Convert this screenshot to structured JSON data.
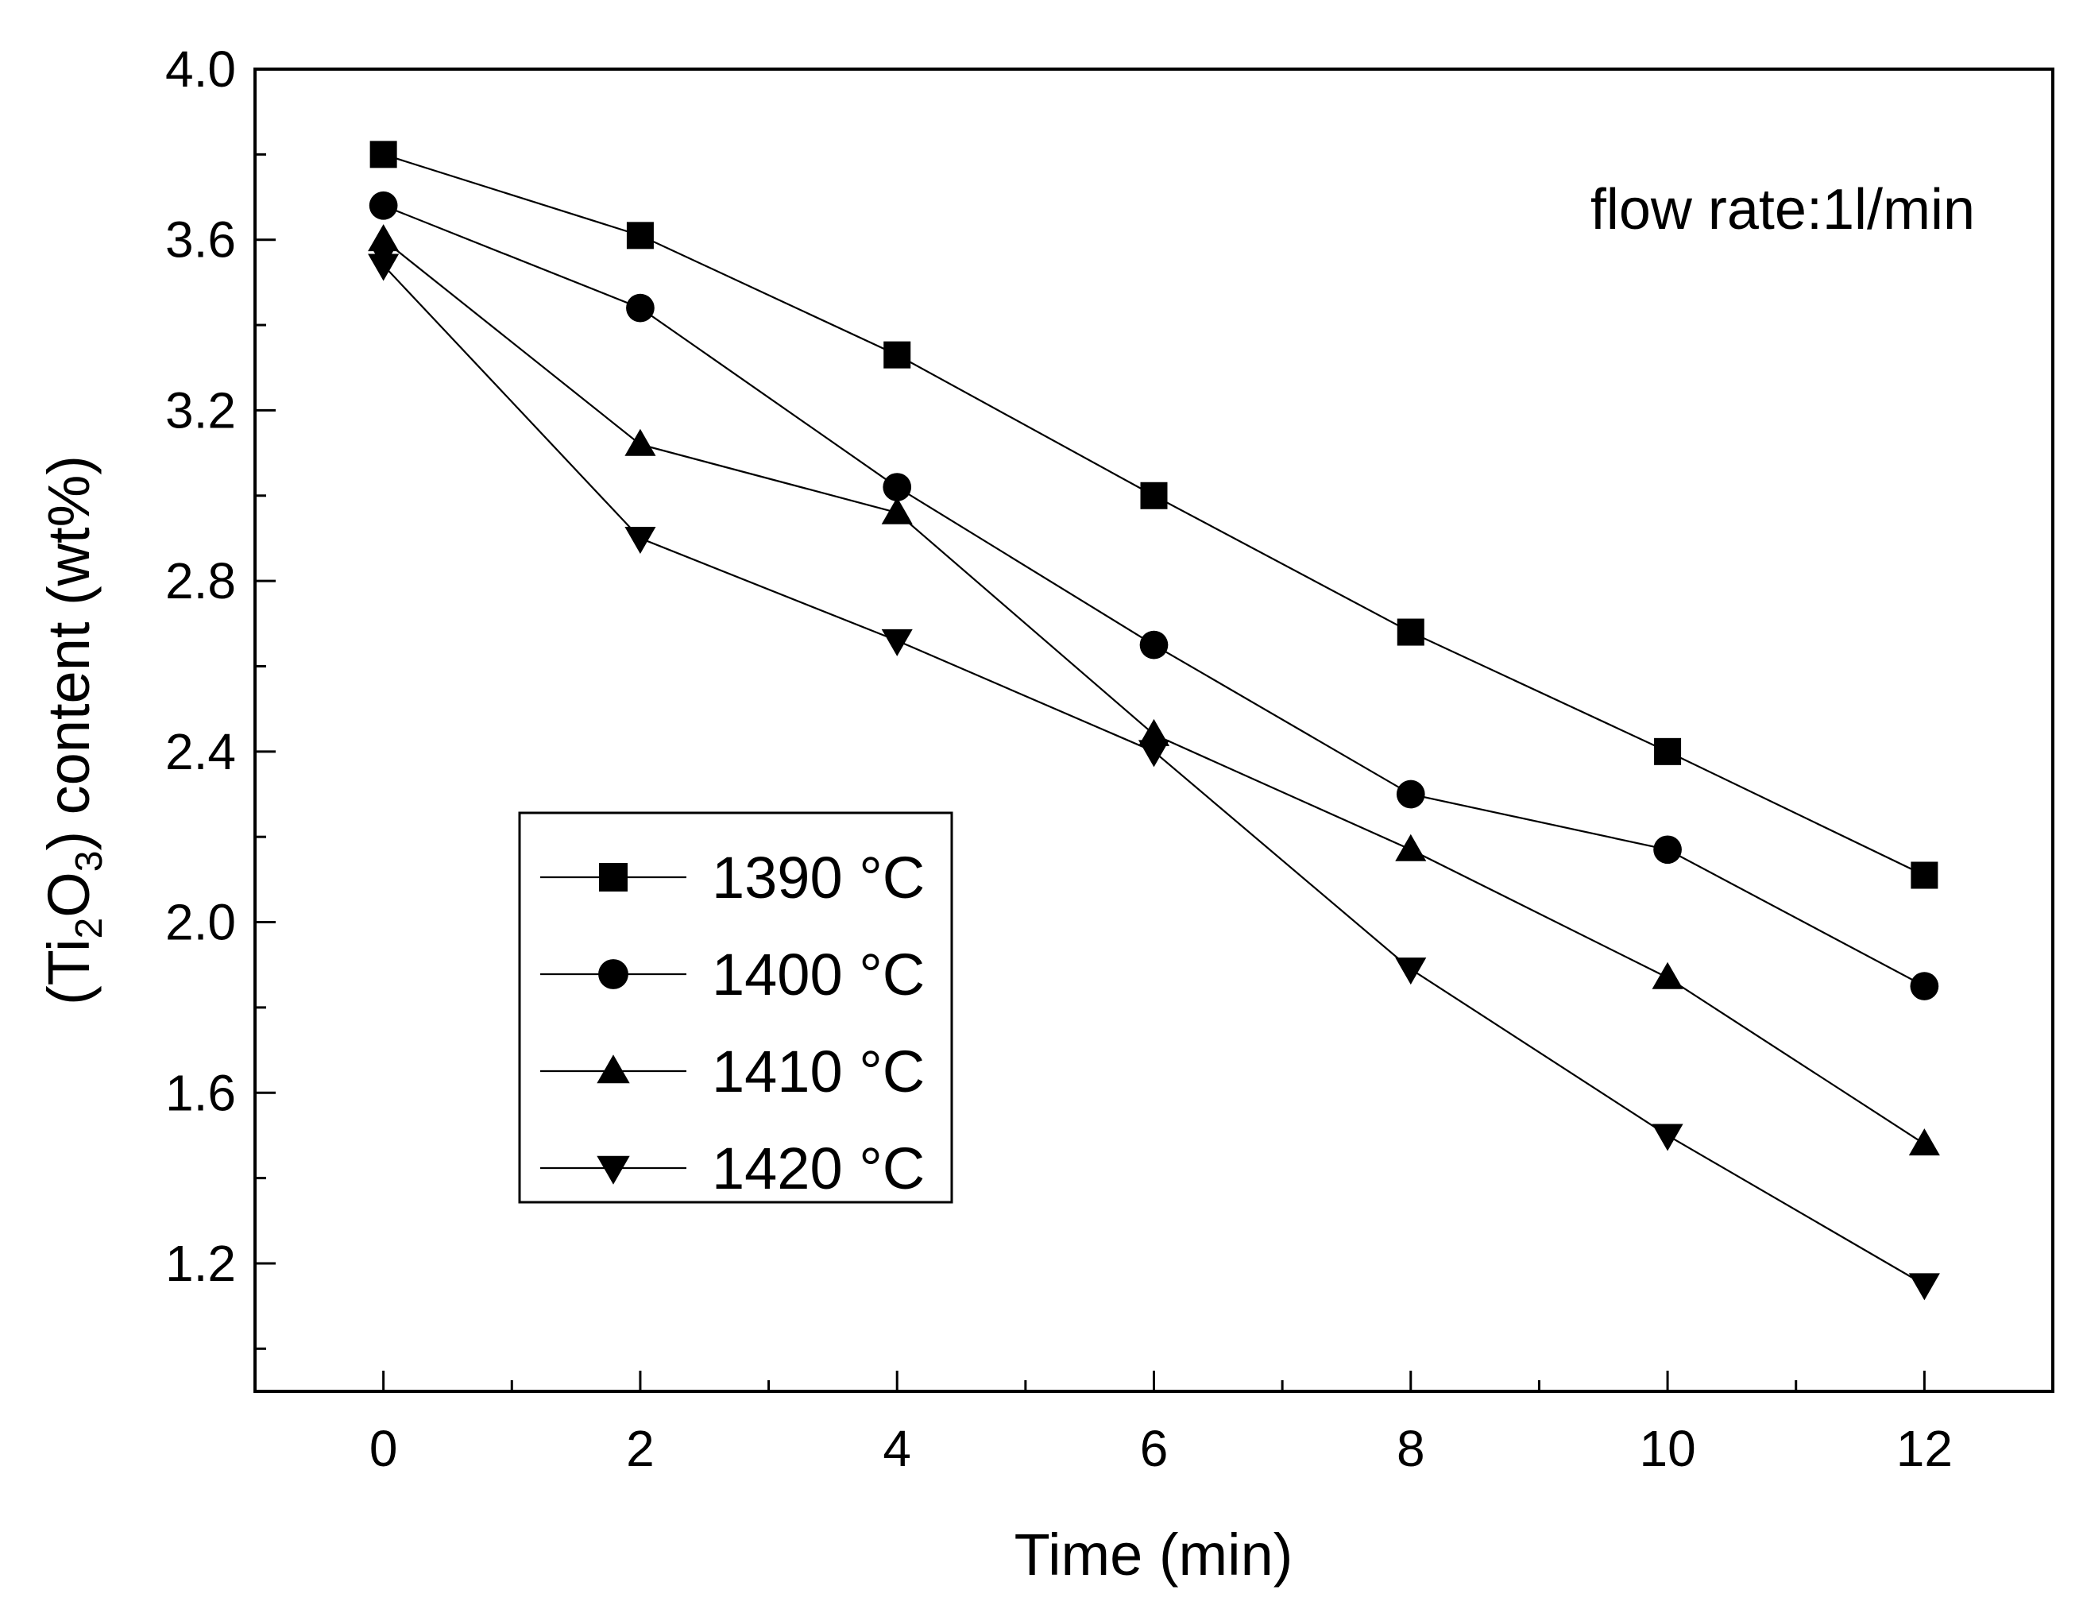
{
  "chart_data": {
    "type": "line",
    "title": "",
    "xlabel": "Time (min)",
    "ylabel": {
      "prefix": "(Ti",
      "sub1": "2",
      "mid": "O",
      "sub2": "3",
      "suffix": ") content (wt%)"
    },
    "xlim": [
      -1,
      13
    ],
    "ylim": [
      0.9,
      4.0
    ],
    "x_ticks": [
      0,
      2,
      4,
      6,
      8,
      10,
      12
    ],
    "x_tick_labels": [
      "0",
      "2",
      "4",
      "6",
      "8",
      "10",
      "12"
    ],
    "y_ticks": [
      1.2,
      1.6,
      2.0,
      2.4,
      2.8,
      3.2,
      3.6,
      4.0
    ],
    "y_tick_labels": [
      "1.2",
      "1.6",
      "2.0",
      "2.4",
      "2.8",
      "3.2",
      "3.6",
      "4.0"
    ],
    "annotation": "flow rate:1l/min",
    "legend_position": "lower-left",
    "x": [
      0,
      2,
      4,
      6,
      8,
      10,
      12
    ],
    "series": [
      {
        "name": "1390 °C",
        "number": "1390",
        "unit": "°C",
        "marker": "square",
        "values": [
          3.8,
          3.61,
          3.33,
          3.0,
          2.68,
          2.4,
          2.11
        ]
      },
      {
        "name": "1400 °C",
        "number": "1400",
        "unit": "°C",
        "marker": "circle",
        "values": [
          3.68,
          3.44,
          3.02,
          2.65,
          2.3,
          2.17,
          1.85
        ]
      },
      {
        "name": "1410 °C",
        "number": "1410",
        "unit": "°C",
        "marker": "triangle-up",
        "values": [
          3.6,
          3.12,
          2.96,
          2.44,
          2.17,
          1.87,
          1.48
        ]
      },
      {
        "name": "1420 °C",
        "number": "1420",
        "unit": "°C",
        "marker": "triangle-down",
        "values": [
          3.54,
          2.9,
          2.66,
          2.4,
          1.89,
          1.5,
          1.15
        ]
      }
    ],
    "overlap_markers": [
      {
        "x": 0,
        "y": 3.58,
        "marker": "diamond"
      },
      {
        "x": 6,
        "y": 2.42,
        "marker": "diamond"
      }
    ]
  }
}
